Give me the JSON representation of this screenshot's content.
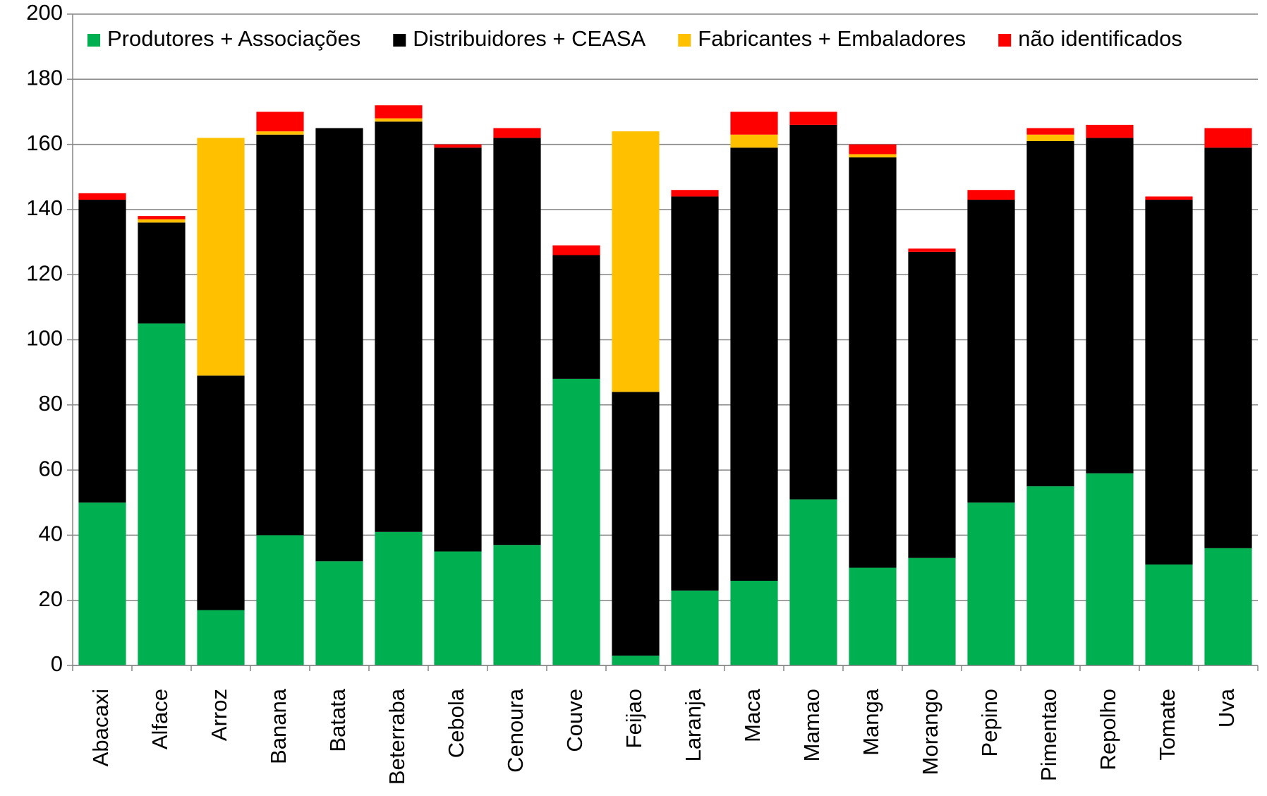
{
  "chart_data": {
    "type": "stacked_bar",
    "categories": [
      "Abacaxi",
      "Alface",
      "Arroz",
      "Banana",
      "Batata",
      "Beterraba",
      "Cebola",
      "Cenoura",
      "Couve",
      "Feijao",
      "Laranja",
      "Maca",
      "Mamao",
      "Manga",
      "Morango",
      "Pepino",
      "Pimentao",
      "Repolho",
      "Tomate",
      "Uva"
    ],
    "series": [
      {
        "name": "Produtores + Associações",
        "color": "#00b050",
        "values": [
          50,
          105,
          17,
          40,
          32,
          41,
          35,
          37,
          88,
          3,
          23,
          26,
          51,
          30,
          33,
          50,
          55,
          59,
          31,
          36
        ]
      },
      {
        "name": "Distribuidores + CEASA",
        "color": "#000000",
        "values": [
          93,
          31,
          72,
          123,
          133,
          126,
          124,
          125,
          38,
          81,
          121,
          133,
          115,
          126,
          94,
          93,
          106,
          103,
          112,
          123
        ]
      },
      {
        "name": "Fabricantes + Embaladores",
        "color": "#ffc000",
        "values": [
          0,
          1,
          73,
          1,
          0,
          1,
          0,
          0,
          0,
          80,
          0,
          4,
          0,
          1,
          0,
          0,
          2,
          0,
          0,
          0
        ]
      },
      {
        "name": "não identificados",
        "color": "#ff0000",
        "values": [
          2,
          1,
          0,
          6,
          0,
          4,
          1,
          3,
          3,
          0,
          2,
          7,
          4,
          3,
          1,
          3,
          2,
          4,
          1,
          6
        ]
      }
    ],
    "ylim": [
      0,
      200
    ],
    "yticks": [
      0,
      20,
      40,
      60,
      80,
      100,
      120,
      140,
      160,
      180,
      200
    ],
    "grid": true,
    "legend": "top"
  }
}
